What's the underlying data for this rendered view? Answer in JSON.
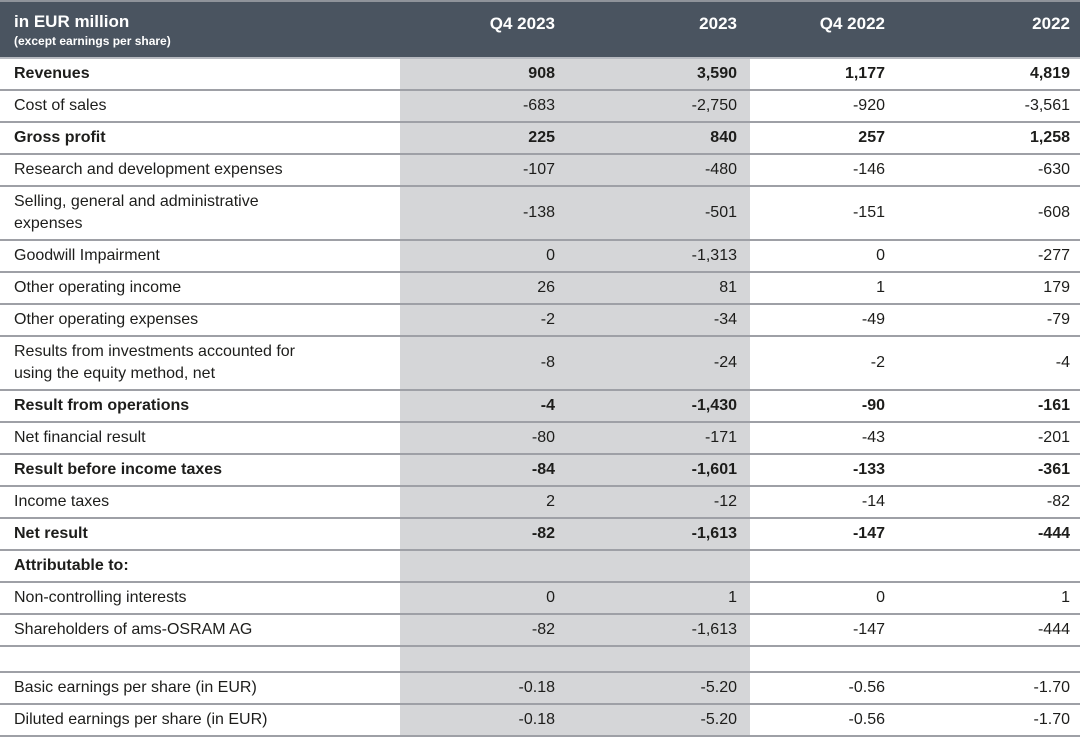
{
  "table": {
    "unit_label": "in EUR million",
    "unit_sublabel": "(except earnings per share)",
    "columns": [
      "Q4 2023",
      "2023",
      "Q4 2022",
      "2022"
    ],
    "rows": [
      {
        "label": "Revenues",
        "bold": true,
        "values": [
          "908",
          "3,590",
          "1,177",
          "4,819"
        ]
      },
      {
        "label": "Cost of sales",
        "bold": false,
        "values": [
          "-683",
          "-2,750",
          "-920",
          "-3,561"
        ]
      },
      {
        "label": "Gross profit",
        "bold": true,
        "values": [
          "225",
          "840",
          "257",
          "1,258"
        ]
      },
      {
        "label": "Research and development expenses",
        "bold": false,
        "values": [
          "-107",
          "-480",
          "-146",
          "-630"
        ]
      },
      {
        "label": "Selling, general and administrative\nexpenses",
        "bold": false,
        "values": [
          "-138",
          "-501",
          "-151",
          "-608"
        ]
      },
      {
        "label": "Goodwill Impairment",
        "bold": false,
        "values": [
          "0",
          "-1,313",
          "0",
          "-277"
        ]
      },
      {
        "label": "Other operating income",
        "bold": false,
        "values": [
          "26",
          "81",
          "1",
          "179"
        ]
      },
      {
        "label": "Other operating expenses",
        "bold": false,
        "values": [
          "-2",
          "-34",
          "-49",
          "-79"
        ]
      },
      {
        "label": "Results from investments accounted for\nusing the equity method, net",
        "bold": false,
        "values": [
          "-8",
          "-24",
          "-2",
          "-4"
        ]
      },
      {
        "label": "Result from operations",
        "bold": true,
        "values": [
          "-4",
          "-1,430",
          "-90",
          "-161"
        ]
      },
      {
        "label": "Net financial result",
        "bold": false,
        "values": [
          "-80",
          "-171",
          "-43",
          "-201"
        ]
      },
      {
        "label": "Result before income taxes",
        "bold": true,
        "values": [
          "-84",
          "-1,601",
          "-133",
          "-361"
        ]
      },
      {
        "label": "Income taxes",
        "bold": false,
        "values": [
          "2",
          "-12",
          "-14",
          "-82"
        ]
      },
      {
        "label": "Net result",
        "bold": true,
        "values": [
          "-82",
          "-1,613",
          "-147",
          "-444"
        ]
      },
      {
        "label": "Attributable to:",
        "bold": true,
        "values": [
          "",
          "",
          "",
          ""
        ]
      },
      {
        "label": "Non-controlling interests",
        "bold": false,
        "values": [
          "0",
          "1",
          "0",
          "1"
        ]
      },
      {
        "label": "Shareholders of ams-OSRAM AG",
        "bold": false,
        "values": [
          "-82",
          "-1,613",
          "-147",
          "-444"
        ]
      },
      {
        "label": "",
        "bold": false,
        "spacer": true,
        "values": [
          "",
          "",
          "",
          ""
        ]
      },
      {
        "label": "Basic earnings per share (in EUR)",
        "bold": false,
        "values": [
          "-0.18",
          "-5.20",
          "-0.56",
          "-1.70"
        ]
      },
      {
        "label": "Diluted earnings per share (in EUR)",
        "bold": false,
        "values": [
          "-0.18",
          "-5.20",
          "-0.56",
          "-1.70"
        ]
      }
    ]
  },
  "colors": {
    "header_bg": "#4a5460",
    "header_text": "#ffffff",
    "header_top_border": "#8f939a",
    "header_divider": "#b7bac0",
    "shaded_column_bg": "#d5d6d8",
    "row_border": "#9ea0a6",
    "text": "#1d1d1b"
  }
}
